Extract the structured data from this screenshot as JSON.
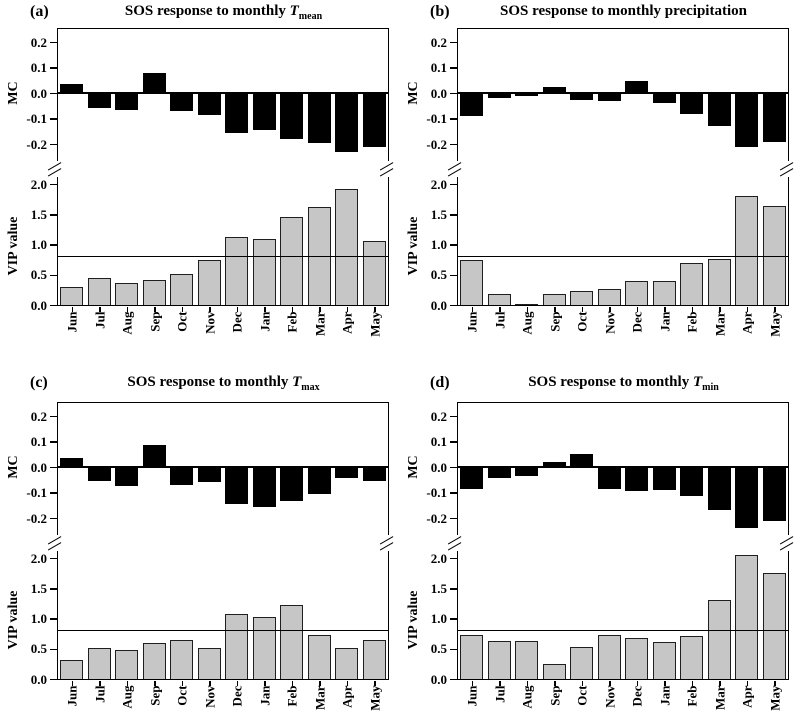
{
  "axes": {
    "mc_label": "MC",
    "vip_label": "VIP value",
    "mc_tick_labels": [
      "0.2",
      "0.1",
      "0.0",
      "-0.1",
      "-0.2"
    ],
    "mc_tick_values": [
      0.2,
      0.1,
      0.0,
      -0.1,
      -0.2
    ],
    "vip_tick_labels": [
      "2.0",
      "1.5",
      "1.0",
      "0.5",
      "0.0"
    ],
    "vip_tick_values": [
      2.0,
      1.5,
      1.0,
      0.5,
      0.0
    ],
    "vip_threshold": 0.8
  },
  "colors": {
    "mc_bar": "#000000",
    "vip_bar": "#c6c6c6",
    "vip_bar_border": "#1f1f1f",
    "axis": "#000000",
    "background": "#ffffff"
  },
  "chart_data": [
    {
      "type": "bar",
      "panel_label": "(a)",
      "title_prefix": "SOS response to monthly ",
      "title_var": "T",
      "title_sub": "mean",
      "categories": [
        "Jun",
        "Jul",
        "Aug",
        "Sep",
        "Oct",
        "Nov",
        "Dec",
        "Jan",
        "Feb",
        "Mar",
        "Apr",
        "May"
      ],
      "series": [
        {
          "name": "MC",
          "values": [
            0.035,
            -0.06,
            -0.065,
            0.08,
            -0.07,
            -0.085,
            -0.155,
            -0.145,
            -0.18,
            -0.195,
            -0.23,
            -0.21
          ]
        },
        {
          "name": "VIP value",
          "values": [
            0.29,
            0.44,
            0.37,
            0.42,
            0.51,
            0.75,
            1.12,
            1.09,
            1.46,
            1.62,
            1.91,
            1.06
          ]
        }
      ],
      "mc_ylim": [
        -0.25,
        0.25
      ],
      "vip_ylim": [
        0.0,
        2.2
      ],
      "threshold": 0.8,
      "axis_break": true
    },
    {
      "type": "bar",
      "panel_label": "(b)",
      "title_prefix": "SOS response to monthly precipitation",
      "title_var": "",
      "title_sub": "",
      "categories": [
        "Jun",
        "Jul",
        "Aug",
        "Sep",
        "Oct",
        "Nov",
        "Dec",
        "Jan",
        "Feb",
        "Mar",
        "Apr",
        "May"
      ],
      "series": [
        {
          "name": "MC",
          "values": [
            -0.09,
            -0.02,
            -0.012,
            0.022,
            -0.027,
            -0.032,
            0.046,
            -0.04,
            -0.082,
            -0.13,
            -0.21,
            -0.192
          ]
        },
        {
          "name": "VIP value",
          "values": [
            0.75,
            0.19,
            0.02,
            0.19,
            0.23,
            0.26,
            0.4,
            0.39,
            0.69,
            0.76,
            1.8,
            1.63
          ]
        }
      ],
      "mc_ylim": [
        -0.25,
        0.25
      ],
      "vip_ylim": [
        0.0,
        2.2
      ],
      "threshold": 0.8,
      "axis_break": true
    },
    {
      "type": "bar",
      "panel_label": "(c)",
      "title_prefix": "SOS response to monthly ",
      "title_var": "T",
      "title_sub": "max",
      "categories": [
        "Jun",
        "Jul",
        "Aug",
        "Sep",
        "Oct",
        "Nov",
        "Dec",
        "Jan",
        "Feb",
        "Mar",
        "Apr",
        "May"
      ],
      "series": [
        {
          "name": "MC",
          "values": [
            0.035,
            -0.055,
            -0.075,
            0.085,
            -0.07,
            -0.06,
            -0.145,
            -0.155,
            -0.135,
            -0.105,
            -0.045,
            -0.055
          ]
        },
        {
          "name": "VIP value",
          "values": [
            0.31,
            0.52,
            0.48,
            0.6,
            0.64,
            0.52,
            1.07,
            1.03,
            1.23,
            0.72,
            0.51,
            0.65
          ]
        }
      ],
      "mc_ylim": [
        -0.25,
        0.25
      ],
      "vip_ylim": [
        0.0,
        2.2
      ],
      "threshold": 0.8,
      "axis_break": true
    },
    {
      "type": "bar",
      "panel_label": "(d)",
      "title_prefix": "SOS response to monthly ",
      "title_var": "T",
      "title_sub": "min",
      "categories": [
        "Jun",
        "Jul",
        "Aug",
        "Sep",
        "Oct",
        "Nov",
        "Dec",
        "Jan",
        "Feb",
        "Mar",
        "Apr",
        "May"
      ],
      "series": [
        {
          "name": "MC",
          "values": [
            -0.085,
            -0.045,
            -0.035,
            0.02,
            0.05,
            -0.085,
            -0.095,
            -0.09,
            -0.115,
            -0.17,
            -0.24,
            -0.21
          ]
        },
        {
          "name": "VIP value",
          "values": [
            0.73,
            0.62,
            0.62,
            0.24,
            0.53,
            0.72,
            0.67,
            0.61,
            0.71,
            1.3,
            2.05,
            1.75
          ]
        }
      ],
      "mc_ylim": [
        -0.25,
        0.25
      ],
      "vip_ylim": [
        0.0,
        2.2
      ],
      "threshold": 0.8,
      "axis_break": true
    }
  ]
}
